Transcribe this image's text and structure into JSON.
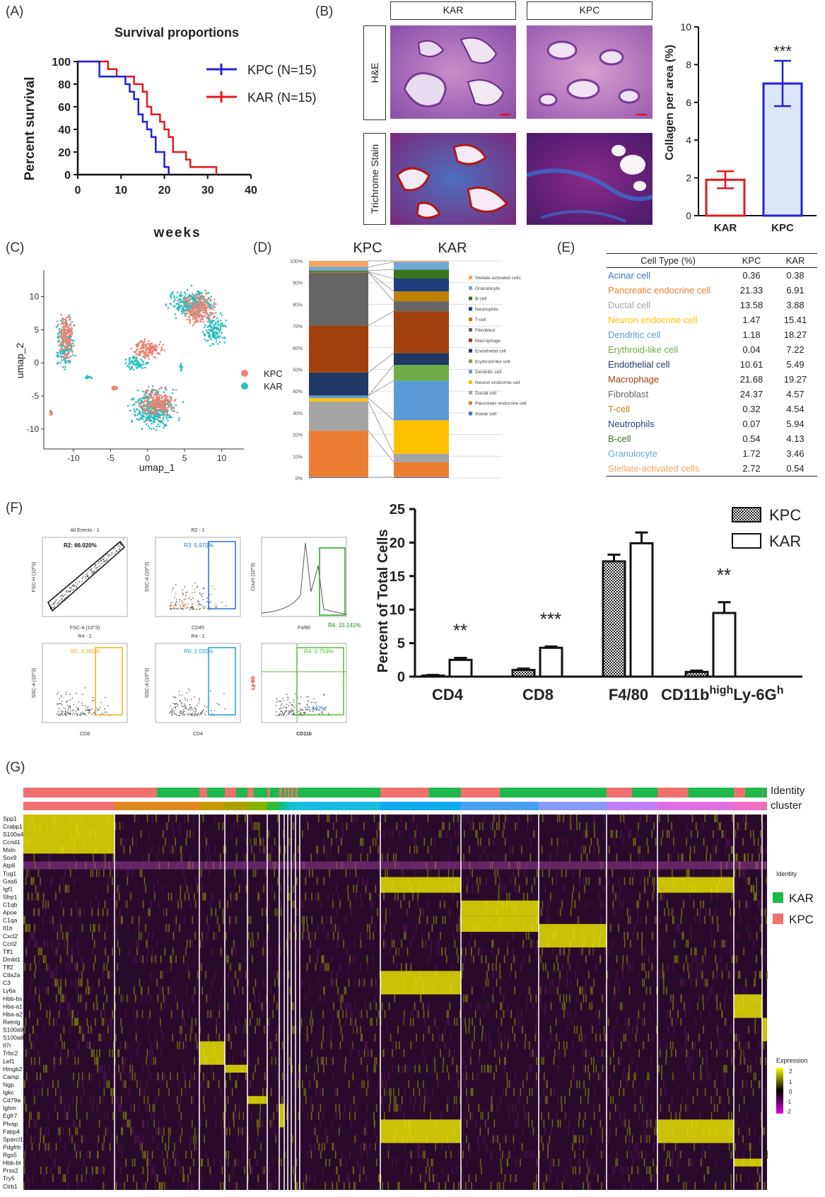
{
  "panels": {
    "A": "(A)",
    "B": "(B)",
    "C": "(C)",
    "D": "(D)",
    "E": "(E)",
    "F": "(F)",
    "G": "(G)"
  },
  "colors": {
    "kpc_blue": "#1f1fdc",
    "kar_red": "#e31a1c",
    "salmon": "#f08070",
    "teal": "#2bbdbd",
    "heat_low": "#e000e0",
    "heat_mid": "#000000",
    "heat_high": "#ffff00",
    "id_kar": "#1fb84a",
    "id_kpc": "#f07070"
  },
  "panelA": {
    "title": "Survival proportions",
    "ylabel": "Percent survival",
    "xlabel": "weeks",
    "legend": [
      {
        "label": "KPC (N=15)",
        "color": "#1f1fdc"
      },
      {
        "label": "KAR (N=15)",
        "color": "#e31a1c"
      }
    ]
  },
  "panelB": {
    "col_headers": [
      "KAR",
      "KPC"
    ],
    "row_headers": [
      "H&E",
      "Trichrome Stain"
    ],
    "chart_ylabel": "Collagen per area (%)",
    "significance": "***"
  },
  "panelC": {
    "xlabel": "umap_1",
    "ylabel": "umap_2",
    "legend": [
      {
        "label": "KPC",
        "color": "#f08070"
      },
      {
        "label": "KAR",
        "color": "#2bbdbd"
      }
    ]
  },
  "panelD": {
    "col_labels": [
      "KPC",
      "KAR"
    ],
    "legend": [
      {
        "label": "Stellate-activated cells",
        "color": "#f4a460"
      },
      {
        "label": "Granulocyte",
        "color": "#6fa8dc"
      },
      {
        "label": "B-cell",
        "color": "#38761d"
      },
      {
        "label": "Neutrophils",
        "color": "#1f3f7f"
      },
      {
        "label": "T-cell",
        "color": "#bf7f00"
      },
      {
        "label": "Fibroblast",
        "color": "#666666"
      },
      {
        "label": "Macrophage",
        "color": "#a0410d"
      },
      {
        "label": "Endothelial cell",
        "color": "#203864"
      },
      {
        "label": "Erythroid-like cell",
        "color": "#70ad47"
      },
      {
        "label": "Dendritic cell",
        "color": "#5b9bd5"
      },
      {
        "label": "Neuron endocrine cell",
        "color": "#ffc000"
      },
      {
        "label": "Ductal cell",
        "color": "#a5a5a5"
      },
      {
        "label": "Pancreatic endocrine cell",
        "color": "#ed7d31"
      },
      {
        "label": "Acinar cell",
        "color": "#4472c4"
      }
    ]
  },
  "panelE": {
    "headers": [
      "Cell Type (%)",
      "KPC",
      "KAR"
    ],
    "rows": [
      {
        "name": "Acinar cell",
        "kpc": "0.36",
        "kar": "0.38",
        "color": "#4472c4"
      },
      {
        "name": "Pancreatic endocrine cell",
        "kpc": "21.33",
        "kar": "6.91",
        "color": "#ed7d31"
      },
      {
        "name": "Ductal cell",
        "kpc": "13.58",
        "kar": "3.88",
        "color": "#a5a5a5"
      },
      {
        "name": "Neuron endocrine cell",
        "kpc": "1.47",
        "kar": "15.41",
        "color": "#ffc000"
      },
      {
        "name": "Dendritic cell",
        "kpc": "1.18",
        "kar": "18.27",
        "color": "#5b9bd5"
      },
      {
        "name": "Erythroid-like cell",
        "kpc": "0.04",
        "kar": "7.22",
        "color": "#70ad47"
      },
      {
        "name": "Endothelial cell",
        "kpc": "10.61",
        "kar": "5.49",
        "color": "#203864"
      },
      {
        "name": "Macrophage",
        "kpc": "21.68",
        "kar": "19.27",
        "color": "#a0410d"
      },
      {
        "name": "Fibroblast",
        "kpc": "24.37",
        "kar": "4.57",
        "color": "#666666"
      },
      {
        "name": "T-cell",
        "kpc": "0.32",
        "kar": "4.54",
        "color": "#bf7f00"
      },
      {
        "name": "Neutrophils",
        "kpc": "0.07",
        "kar": "5.94",
        "color": "#1f3f7f"
      },
      {
        "name": "B-cell",
        "kpc": "0.54",
        "kar": "4.13",
        "color": "#38761d"
      },
      {
        "name": "Granulocyte",
        "kpc": "1.72",
        "kar": "3.46",
        "color": "#6fa8dc"
      },
      {
        "name": "Stellate-activated cells",
        "kpc": "2.72",
        "kar": "0.54",
        "color": "#f4a460"
      }
    ]
  },
  "panelF": {
    "facs_titles": [
      "All Events - 1",
      "R2 - 1",
      "",
      "R4 - 1",
      "R4 - 1",
      ""
    ],
    "facs_gates": [
      "R2: 66.020%",
      "R3: 5.970%",
      "R4: 15.141%",
      "R5: 4.360%",
      "R6: 2.030%",
      "R4: 0.759%"
    ],
    "facs_xlabels": [
      "FSC-A (10^3)",
      "CD45",
      "F4/80",
      "CD8",
      "CD4",
      "CD11b"
    ],
    "facs_ylabels": [
      "FSC-H (10^3)",
      "SSC-A (10^3)",
      "Count (10^3)",
      "SSC-A (10^3)",
      "SSC-A (10^3)",
      "Ly-6G"
    ],
    "extra_gate": "0.342%",
    "chart_ylabel": "Percent of Total Cells",
    "legend": [
      "KPC",
      "KAR"
    ],
    "significance": [
      "**",
      "***",
      "",
      "**"
    ]
  },
  "panelG": {
    "track_labels": [
      "Identity",
      "cluster"
    ],
    "genes": [
      "Spp1",
      "Crabp1",
      "S100a4",
      "Ccnd1",
      "Msln",
      "Sox9",
      "Atp6",
      "Tug1",
      "Gas6",
      "Igf1",
      "Sfrp1",
      "C1qb",
      "Apoe",
      "C1qa",
      "Il1b",
      "Cxcl2",
      "Ccrl2",
      "Tff1",
      "Dmbt1",
      "Tff2",
      "Ctla2a",
      "C3",
      "Ly6a",
      "Hbb-bs",
      "Hba-a1",
      "Hba-a2",
      "Retnlg",
      "S100a9",
      "S100a8",
      "Il7r",
      "Trbc2",
      "Lef1",
      "Hmgb2",
      "Camp",
      "Ngp",
      "Igkc",
      "Cd79a",
      "Ighm",
      "Egfr7",
      "Plvap",
      "Fabp4",
      "Sparcl1",
      "Pdgfrb",
      "Rgs5",
      "Hbb-bt",
      "Prss2",
      "Try5",
      "Ctrb1"
    ],
    "identity_title": "Identity",
    "identity_legend": [
      {
        "label": "KAR",
        "color": "#1fb84a"
      },
      {
        "label": "KPC",
        "color": "#f07070"
      }
    ],
    "expr_title": "Expression",
    "expr_ticks": [
      "2",
      "1",
      "0",
      "-1",
      "-2"
    ]
  },
  "chart_data": [
    {
      "panel": "A",
      "type": "line",
      "title": "Survival proportions",
      "xlabel": "weeks",
      "ylabel": "Percent survival",
      "xlim": [
        0,
        40
      ],
      "ylim": [
        0,
        100
      ],
      "xticks": [
        0,
        10,
        20,
        30,
        40
      ],
      "yticks": [
        0,
        20,
        40,
        60,
        80,
        100
      ],
      "series": [
        {
          "name": "KPC (N=15)",
          "color": "#1f1fdc",
          "x": [
            0,
            5,
            10,
            11,
            12,
            13,
            14,
            15,
            16,
            17,
            18,
            20,
            21
          ],
          "y": [
            100,
            86.7,
            86.7,
            80,
            73.3,
            66.7,
            53.3,
            46.7,
            40,
            33.3,
            20,
            6.7,
            0
          ]
        },
        {
          "name": "KAR (N=15)",
          "color": "#e31a1c",
          "x": [
            0,
            7,
            9,
            13,
            15,
            16,
            17,
            19,
            20,
            21,
            22,
            25,
            26,
            31,
            32
          ],
          "y": [
            100,
            93.3,
            86.7,
            80,
            73.3,
            60,
            53.3,
            46.7,
            40,
            33.3,
            20,
            13.3,
            6.7,
            6.7,
            0
          ]
        }
      ]
    },
    {
      "panel": "B",
      "type": "bar",
      "ylabel": "Collagen per area (%)",
      "ylim": [
        0,
        10
      ],
      "yticks": [
        0,
        2,
        4,
        6,
        8,
        10
      ],
      "categories": [
        "KAR",
        "KPC"
      ],
      "values": [
        1.9,
        7.0
      ],
      "errors": [
        0.45,
        1.2
      ],
      "colors": [
        "#e31a1c",
        "#1f1fdc"
      ]
    },
    {
      "panel": "C",
      "type": "scatter",
      "xlabel": "umap_1",
      "ylabel": "umap_2",
      "xlim": [
        -14,
        13
      ],
      "ylim": [
        -13,
        14
      ],
      "xticks": [
        -10,
        -5,
        0,
        5,
        10
      ],
      "yticks": [
        -10,
        -5,
        0,
        5,
        10
      ],
      "series": [
        {
          "name": "KPC",
          "color": "#f08070",
          "clusters": [
            [
              -11,
              4,
              1.4,
              4.5
            ],
            [
              -4.5,
              -3.8,
              0.7,
              0.4
            ],
            [
              0,
              2,
              3,
              2
            ],
            [
              1.5,
              -6,
              3,
              3
            ],
            [
              7,
              8,
              3,
              3
            ],
            [
              -13,
              -7.5,
              0.3,
              0.7
            ]
          ]
        },
        {
          "name": "KAR",
          "color": "#2bbdbd",
          "clusters": [
            [
              -11,
              3,
              1.6,
              5
            ],
            [
              6,
              9,
              4,
              3
            ],
            [
              1,
              -7,
              4,
              4
            ],
            [
              -1.5,
              0,
              2,
              1.5
            ],
            [
              9,
              5,
              2,
              3
            ],
            [
              -8,
              -2.2,
              0.6,
              0.3
            ],
            [
              4.5,
              -0.8,
              0.2,
              1
            ]
          ]
        }
      ]
    },
    {
      "panel": "D",
      "type": "bar",
      "stacked": true,
      "categories": [
        "KPC",
        "KAR"
      ],
      "yticks": [
        "0%",
        "10%",
        "20%",
        "30%",
        "40%",
        "50%",
        "60%",
        "70%",
        "80%",
        "90%",
        "100%"
      ],
      "series_order": [
        "Acinar cell",
        "Pancreatic endocrine cell",
        "Ductal cell",
        "Neuron endocrine cell",
        "Dendritic cell",
        "Erythroid-like cell",
        "Endothelial cell",
        "Macrophage",
        "Fibroblast",
        "T-cell",
        "Neutrophils",
        "B-cell",
        "Granulocyte",
        "Stellate-activated cells"
      ],
      "KPC": [
        0.36,
        21.33,
        13.58,
        1.47,
        1.18,
        0.04,
        10.61,
        21.68,
        24.37,
        0.32,
        0.07,
        0.54,
        1.72,
        2.72
      ],
      "KAR": [
        0.38,
        6.91,
        3.88,
        15.41,
        18.27,
        7.22,
        5.49,
        19.27,
        4.57,
        4.54,
        5.94,
        4.13,
        3.46,
        0.54
      ]
    },
    {
      "panel": "F",
      "type": "bar",
      "ylabel": "Percent of Total Cells",
      "ylim": [
        0,
        25
      ],
      "yticks": [
        0,
        5,
        10,
        15,
        20,
        25
      ],
      "categories": [
        "CD4",
        "CD8",
        "F4/80",
        "CD11b^high Ly-6G^h"
      ],
      "series": [
        {
          "name": "KPC",
          "values": [
            0.15,
            1.0,
            17.2,
            0.7
          ],
          "errors": [
            0.1,
            0.2,
            1.0,
            0.2
          ]
        },
        {
          "name": "KAR",
          "values": [
            2.5,
            4.3,
            19.9,
            9.5
          ],
          "errors": [
            0.3,
            0.2,
            1.6,
            1.6
          ]
        }
      ],
      "significance": [
        "**",
        "***",
        "",
        "**"
      ]
    },
    {
      "panel": "G",
      "type": "heatmap",
      "rows": 48,
      "cluster_count": 19,
      "value_range": [
        -2,
        2
      ]
    }
  ]
}
